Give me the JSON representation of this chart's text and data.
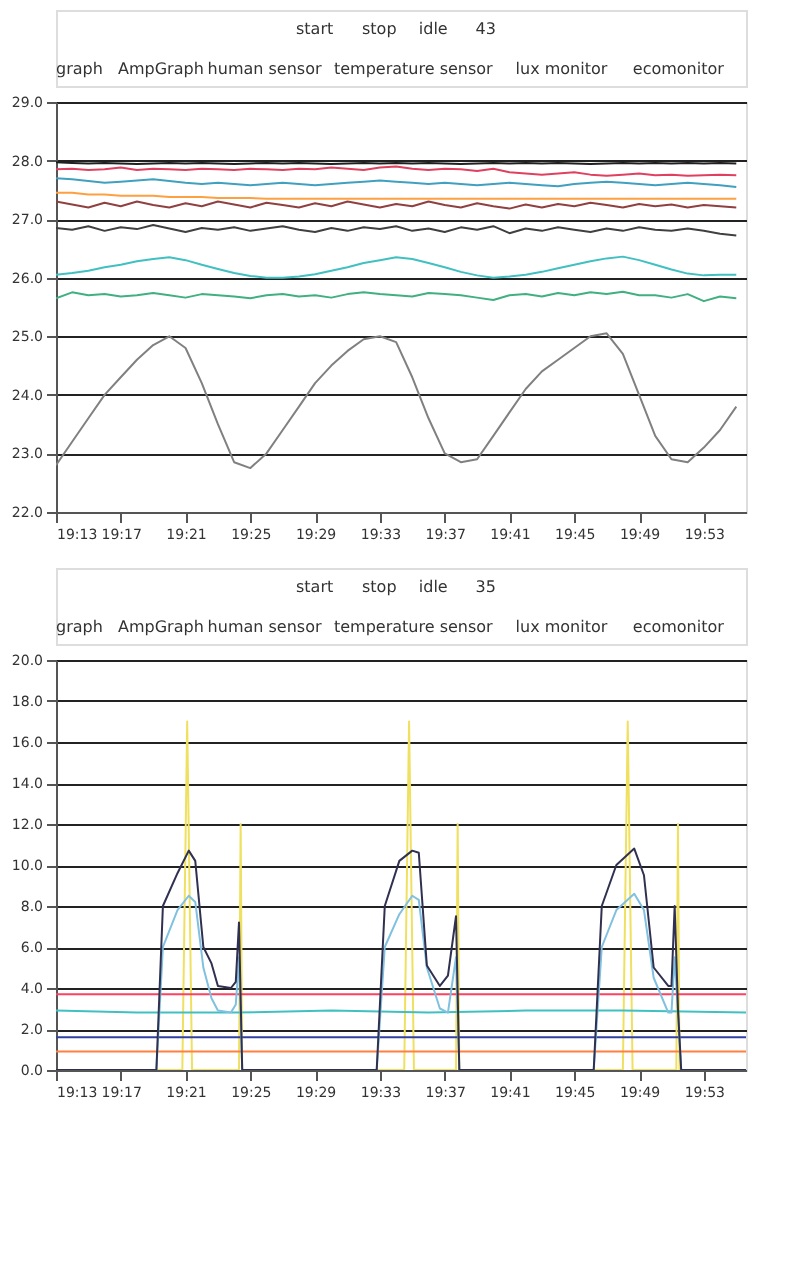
{
  "chart_data": [
    {
      "type": "line",
      "annotations": [
        "start",
        "stop",
        "idle",
        "43",
        "graph",
        "AmpGraph",
        "human sensor",
        "temperature sensor",
        "lux monitor",
        "ecomonitor"
      ],
      "x": [
        19.2167,
        19.2333,
        19.25,
        19.2667,
        19.2833,
        19.3,
        19.3167,
        19.3333,
        19.35,
        19.3667,
        19.3833,
        19.4,
        19.4167,
        19.4333,
        19.45,
        19.4667,
        19.4833,
        19.5,
        19.5167,
        19.5333,
        19.55,
        19.5667,
        19.5833,
        19.6,
        19.6167,
        19.6333,
        19.65,
        19.6667,
        19.6833,
        19.7,
        19.7167,
        19.7333,
        19.75,
        19.7667,
        19.7833,
        19.8,
        19.8167,
        19.8333,
        19.85,
        19.8667,
        19.8833,
        19.9,
        19.9167
      ],
      "series": [
        {
          "color": "#808080",
          "values": [
            22.8,
            23.2,
            23.6,
            24.0,
            24.3,
            24.6,
            24.85,
            25.0,
            24.8,
            24.2,
            23.5,
            22.85,
            22.75,
            23.0,
            23.4,
            23.8,
            24.2,
            24.5,
            24.75,
            24.95,
            25.0,
            24.9,
            24.3,
            23.6,
            23.0,
            22.85,
            22.9,
            23.3,
            23.7,
            24.1,
            24.4,
            24.6,
            24.8,
            25.0,
            25.05,
            24.7,
            24.0,
            23.3,
            22.9,
            22.85,
            23.1,
            23.4,
            23.8
          ]
        },
        {
          "color": "#40b080",
          "values": [
            25.65,
            25.75,
            25.7,
            25.72,
            25.68,
            25.7,
            25.74,
            25.7,
            25.66,
            25.72,
            25.7,
            25.68,
            25.65,
            25.7,
            25.72,
            25.68,
            25.7,
            25.66,
            25.72,
            25.75,
            25.72,
            25.7,
            25.68,
            25.74,
            25.72,
            25.7,
            25.66,
            25.62,
            25.7,
            25.72,
            25.68,
            25.74,
            25.7,
            25.75,
            25.72,
            25.76,
            25.7,
            25.7,
            25.66,
            25.72,
            25.6,
            25.68,
            25.65
          ]
        },
        {
          "color": "#40c0c0",
          "values": [
            26.05,
            26.08,
            26.12,
            26.18,
            26.22,
            26.28,
            26.32,
            26.35,
            26.3,
            26.22,
            26.15,
            26.08,
            26.03,
            26.0,
            26.0,
            26.02,
            26.06,
            26.12,
            26.18,
            26.25,
            26.3,
            26.35,
            26.32,
            26.25,
            26.18,
            26.1,
            26.04,
            26.0,
            26.02,
            26.05,
            26.1,
            26.16,
            26.22,
            26.28,
            26.33,
            26.36,
            26.3,
            26.22,
            26.14,
            26.07,
            26.04,
            26.05,
            26.05
          ]
        },
        {
          "color": "#404040",
          "values": [
            26.85,
            26.82,
            26.88,
            26.8,
            26.86,
            26.83,
            26.9,
            26.84,
            26.78,
            26.85,
            26.82,
            26.86,
            26.8,
            26.84,
            26.88,
            26.82,
            26.78,
            26.85,
            26.8,
            26.86,
            26.83,
            26.88,
            26.8,
            26.84,
            26.78,
            26.86,
            26.82,
            26.88,
            26.76,
            26.84,
            26.8,
            26.86,
            26.82,
            26.78,
            26.84,
            26.8,
            26.86,
            26.82,
            26.8,
            26.84,
            26.8,
            26.75,
            26.72
          ]
        },
        {
          "color": "#904040",
          "values": [
            27.3,
            27.25,
            27.2,
            27.28,
            27.22,
            27.3,
            27.24,
            27.2,
            27.27,
            27.22,
            27.3,
            27.25,
            27.2,
            27.28,
            27.24,
            27.2,
            27.27,
            27.22,
            27.3,
            27.25,
            27.2,
            27.26,
            27.22,
            27.3,
            27.24,
            27.2,
            27.27,
            27.22,
            27.18,
            27.25,
            27.2,
            27.26,
            27.22,
            27.28,
            27.24,
            27.2,
            27.26,
            27.22,
            27.25,
            27.2,
            27.24,
            27.22,
            27.2
          ]
        },
        {
          "color": "#ffa040",
          "values": [
            27.45,
            27.45,
            27.42,
            27.42,
            27.4,
            27.4,
            27.4,
            27.38,
            27.38,
            27.38,
            27.36,
            27.36,
            27.36,
            27.35,
            27.35,
            27.35,
            27.35,
            27.35,
            27.35,
            27.35,
            27.35,
            27.35,
            27.35,
            27.35,
            27.35,
            27.35,
            27.35,
            27.35,
            27.35,
            27.35,
            27.35,
            27.35,
            27.35,
            27.35,
            27.35,
            27.35,
            27.35,
            27.35,
            27.35,
            27.35,
            27.35,
            27.35,
            27.35
          ]
        },
        {
          "color": "#40a0c0",
          "values": [
            27.7,
            27.68,
            27.65,
            27.62,
            27.64,
            27.66,
            27.68,
            27.65,
            27.62,
            27.6,
            27.62,
            27.6,
            27.58,
            27.6,
            27.62,
            27.6,
            27.58,
            27.6,
            27.62,
            27.64,
            27.66,
            27.64,
            27.62,
            27.6,
            27.62,
            27.6,
            27.58,
            27.6,
            27.62,
            27.6,
            27.58,
            27.56,
            27.6,
            27.62,
            27.64,
            27.62,
            27.6,
            27.58,
            27.6,
            27.62,
            27.6,
            27.58,
            27.55
          ]
        },
        {
          "color": "#e04060",
          "values": [
            27.85,
            27.86,
            27.84,
            27.85,
            27.88,
            27.84,
            27.86,
            27.85,
            27.84,
            27.86,
            27.85,
            27.84,
            27.86,
            27.85,
            27.84,
            27.86,
            27.85,
            27.88,
            27.86,
            27.84,
            27.88,
            27.9,
            27.86,
            27.84,
            27.86,
            27.85,
            27.82,
            27.86,
            27.8,
            27.78,
            27.76,
            27.78,
            27.8,
            27.76,
            27.74,
            27.76,
            27.78,
            27.75,
            27.76,
            27.74,
            27.75,
            27.76,
            27.75
          ]
        },
        {
          "color": "#202020",
          "values": [
            27.97,
            27.96,
            27.95,
            27.96,
            27.95,
            27.94,
            27.95,
            27.96,
            27.95,
            27.96,
            27.95,
            27.94,
            27.95,
            27.96,
            27.95,
            27.96,
            27.95,
            27.94,
            27.95,
            27.96,
            27.95,
            27.96,
            27.95,
            27.96,
            27.95,
            27.94,
            27.95,
            27.96,
            27.95,
            27.96,
            27.95,
            27.96,
            27.95,
            27.94,
            27.95,
            27.96,
            27.95,
            27.96,
            27.95,
            27.96,
            27.95,
            27.96,
            27.95
          ]
        }
      ],
      "xlim": [
        19.2167,
        19.9267
      ],
      "ylim": [
        22,
        29
      ],
      "xticks": [
        {
          "value": 19.2167,
          "label": "19:13"
        },
        {
          "value": 19.2833,
          "label": "19:17"
        },
        {
          "value": 19.35,
          "label": "19:21"
        },
        {
          "value": 19.4167,
          "label": "19:25"
        },
        {
          "value": 19.4833,
          "label": "19:29"
        },
        {
          "value": 19.55,
          "label": "19:33"
        },
        {
          "value": 19.6167,
          "label": "19:37"
        },
        {
          "value": 19.6833,
          "label": "19:41"
        },
        {
          "value": 19.75,
          "label": "19:45"
        },
        {
          "value": 19.8167,
          "label": "19:49"
        },
        {
          "value": 19.8833,
          "label": "19:53"
        }
      ],
      "yticks": [
        {
          "value": 22,
          "label": "22.0"
        },
        {
          "value": 23,
          "label": "23.0"
        },
        {
          "value": 24,
          "label": "24.0"
        },
        {
          "value": 25,
          "label": "25.0"
        },
        {
          "value": 26,
          "label": "26.0"
        },
        {
          "value": 27,
          "label": "27.0"
        },
        {
          "value": 28,
          "label": "28.0"
        },
        {
          "value": 29,
          "label": "29.0"
        }
      ],
      "grid": "y",
      "marker": "none",
      "line_style": "solid"
    },
    {
      "type": "line",
      "annotations": [
        "start",
        "stop",
        "idle",
        "35",
        "graph",
        "AmpGraph",
        "human sensor",
        "temperature sensor",
        "lux monitor",
        "ecomonitor"
      ],
      "series": [
        {
          "color": "#f0e060",
          "x": [
            19.2167,
            19.3467,
            19.3517,
            19.3567,
            19.405,
            19.4067,
            19.4083,
            19.575,
            19.58,
            19.585,
            19.6283,
            19.63,
            19.6317,
            19.8,
            19.805,
            19.81,
            19.855,
            19.8567,
            19.8583,
            19.9267
          ],
          "values": [
            0,
            0,
            17,
            0,
            0,
            12,
            0,
            0,
            17,
            0,
            0,
            12,
            0,
            0,
            17,
            0,
            0,
            12,
            0,
            0
          ]
        },
        {
          "color": "#ff4060",
          "x": [
            19.2167,
            19.9267
          ],
          "values": [
            3.7,
            3.7
          ]
        },
        {
          "color": "#40c0c0",
          "x": [
            19.2167,
            19.3,
            19.4,
            19.5,
            19.6,
            19.7,
            19.8,
            19.9267
          ],
          "values": [
            2.9,
            2.8,
            2.8,
            2.9,
            2.8,
            2.9,
            2.9,
            2.8
          ]
        },
        {
          "color": "#3040a0",
          "x": [
            19.2167,
            19.9267
          ],
          "values": [
            1.6,
            1.6
          ]
        },
        {
          "color": "#ff8040",
          "x": [
            19.2167,
            19.9267
          ],
          "values": [
            0.9,
            0.9
          ]
        },
        {
          "color": "#80c0e0",
          "x": [
            19.2167,
            19.32,
            19.3267,
            19.3417,
            19.3533,
            19.36,
            19.3683,
            19.3767,
            19.3833,
            19.3967,
            19.4017,
            19.405,
            19.4083,
            19.5467,
            19.555,
            19.57,
            19.5833,
            19.59,
            19.5983,
            19.6117,
            19.62,
            19.6283,
            19.6317,
            19.77,
            19.7783,
            19.7933,
            19.8117,
            19.8217,
            19.8317,
            19.8467,
            19.85,
            19.8533,
            19.8567,
            19.86,
            19.9267
          ],
          "values": [
            0,
            0,
            6,
            7.8,
            8.5,
            8.2,
            5,
            3.5,
            2.9,
            2.8,
            3.2,
            5.5,
            0,
            0,
            6,
            7.6,
            8.5,
            8.3,
            5,
            3,
            2.8,
            5.5,
            0,
            0,
            6,
            7.8,
            8.6,
            7.8,
            4.5,
            2.8,
            2.8,
            5.5,
            2.8,
            0,
            0
          ]
        },
        {
          "color": "#303050",
          "x": [
            19.2167,
            19.32,
            19.3267,
            19.3417,
            19.3533,
            19.36,
            19.3683,
            19.3767,
            19.3833,
            19.3967,
            19.4017,
            19.405,
            19.4083,
            19.5467,
            19.555,
            19.57,
            19.5833,
            19.59,
            19.5983,
            19.6117,
            19.62,
            19.6283,
            19.6317,
            19.77,
            19.7783,
            19.7933,
            19.8117,
            19.8217,
            19.8317,
            19.8467,
            19.85,
            19.8533,
            19.8567,
            19.86,
            19.9267
          ],
          "values": [
            0,
            0,
            8,
            9.6,
            10.7,
            10.2,
            6,
            5.2,
            4.1,
            4.0,
            4.3,
            7.2,
            0,
            0,
            8,
            10.2,
            10.7,
            10.6,
            5.1,
            4.1,
            4.6,
            7.5,
            0,
            0,
            8,
            10,
            10.8,
            9.5,
            5,
            4.1,
            4.1,
            8,
            3,
            0,
            0
          ]
        }
      ],
      "xlim": [
        19.2167,
        19.9267
      ],
      "ylim": [
        0,
        20
      ],
      "xticks": [
        {
          "value": 19.2167,
          "label": "19:13"
        },
        {
          "value": 19.2833,
          "label": "19:17"
        },
        {
          "value": 19.35,
          "label": "19:21"
        },
        {
          "value": 19.4167,
          "label": "19:25"
        },
        {
          "value": 19.4833,
          "label": "19:29"
        },
        {
          "value": 19.55,
          "label": "19:33"
        },
        {
          "value": 19.6167,
          "label": "19:37"
        },
        {
          "value": 19.6833,
          "label": "19:41"
        },
        {
          "value": 19.75,
          "label": "19:45"
        },
        {
          "value": 19.8167,
          "label": "19:49"
        },
        {
          "value": 19.8833,
          "label": "19:53"
        }
      ],
      "yticks": [
        {
          "value": 0,
          "label": "0.0"
        },
        {
          "value": 2,
          "label": "2.0"
        },
        {
          "value": 4,
          "label": "4.0"
        },
        {
          "value": 6,
          "label": "6.0"
        },
        {
          "value": 8,
          "label": "8.0"
        },
        {
          "value": 10,
          "label": "10.0"
        },
        {
          "value": 12,
          "label": "12.0"
        },
        {
          "value": 14,
          "label": "14.0"
        },
        {
          "value": 16,
          "label": "16.0"
        },
        {
          "value": 18,
          "label": "18.0"
        },
        {
          "value": 20,
          "label": "20.0"
        }
      ],
      "grid": "y",
      "marker": "none",
      "line_style": "solid"
    }
  ]
}
